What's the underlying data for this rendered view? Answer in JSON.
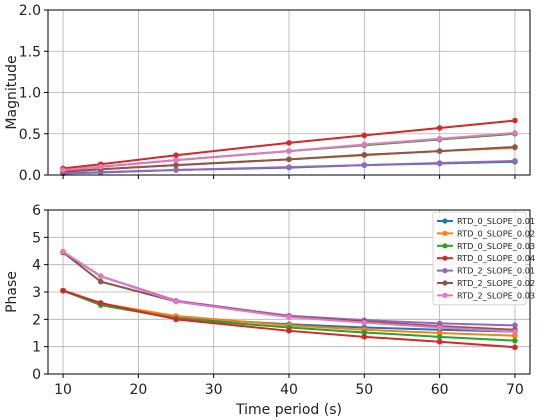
{
  "chart_data": [
    {
      "type": "line",
      "ylabel": "Magnitude",
      "xlabel": "",
      "ylim": [
        0,
        2
      ],
      "xlim": [
        8,
        72
      ],
      "yticks": [
        "0.0",
        "0.5",
        "1.0",
        "1.5",
        "2.0"
      ],
      "xticks": [
        10,
        20,
        30,
        40,
        50,
        60,
        70
      ],
      "grid": true,
      "x": [
        10,
        15,
        25,
        40,
        50,
        60,
        70
      ],
      "series": [
        {
          "name": "RTD_0_SLOPE_0.01",
          "color": "#1f77b4",
          "values": [
            0.02,
            0.03,
            0.06,
            0.09,
            0.12,
            0.14,
            0.16
          ]
        },
        {
          "name": "RTD_0_SLOPE_0.02",
          "color": "#ff7f0e",
          "values": [
            0.04,
            0.07,
            0.12,
            0.19,
            0.24,
            0.29,
            0.33
          ]
        },
        {
          "name": "RTD_0_SLOPE_0.03",
          "color": "#2ca02c",
          "values": [
            0.06,
            0.1,
            0.18,
            0.29,
            0.36,
            0.43,
            0.5
          ]
        },
        {
          "name": "RTD_0_SLOPE_0.04",
          "color": "#d62728",
          "values": [
            0.08,
            0.13,
            0.24,
            0.39,
            0.48,
            0.57,
            0.66
          ]
        },
        {
          "name": "RTD_2_SLOPE_0.01",
          "color": "#9467bd",
          "values": [
            0.02,
            0.035,
            0.06,
            0.095,
            0.12,
            0.145,
            0.17
          ]
        },
        {
          "name": "RTD_2_SLOPE_0.02",
          "color": "#8c564b",
          "values": [
            0.04,
            0.07,
            0.12,
            0.19,
            0.245,
            0.29,
            0.34
          ]
        },
        {
          "name": "RTD_2_SLOPE_0.03",
          "color": "#e377c2",
          "values": [
            0.06,
            0.1,
            0.18,
            0.29,
            0.37,
            0.44,
            0.51
          ]
        }
      ]
    },
    {
      "type": "line",
      "ylabel": "Phase",
      "xlabel": "Time period (s)",
      "ylim": [
        0,
        6
      ],
      "xlim": [
        8,
        72
      ],
      "yticks": [
        "0",
        "1",
        "2",
        "3",
        "4",
        "5",
        "6"
      ],
      "xticks": [
        10,
        20,
        30,
        40,
        50,
        60,
        70
      ],
      "grid": true,
      "legend_position": "top-right",
      "x": [
        10,
        15,
        25,
        40,
        50,
        60,
        70
      ],
      "series": [
        {
          "name": "RTD_0_SLOPE_0.01",
          "color": "#1f77b4",
          "values": [
            3.05,
            2.58,
            2.05,
            1.82,
            1.7,
            1.62,
            1.55
          ]
        },
        {
          "name": "RTD_0_SLOPE_0.02",
          "color": "#ff7f0e",
          "values": [
            3.05,
            2.58,
            2.12,
            1.78,
            1.62,
            1.5,
            1.4
          ]
        },
        {
          "name": "RTD_0_SLOPE_0.03",
          "color": "#2ca02c",
          "values": [
            3.05,
            2.52,
            2.03,
            1.7,
            1.52,
            1.36,
            1.22
          ]
        },
        {
          "name": "RTD_0_SLOPE_0.04",
          "color": "#d62728",
          "values": [
            3.05,
            2.6,
            2.0,
            1.58,
            1.36,
            1.18,
            0.98
          ]
        },
        {
          "name": "RTD_2_SLOPE_0.01",
          "color": "#9467bd",
          "values": [
            4.45,
            3.58,
            2.68,
            2.13,
            1.97,
            1.85,
            1.78
          ]
        },
        {
          "name": "RTD_2_SLOPE_0.02",
          "color": "#8c564b",
          "values": [
            4.45,
            3.38,
            2.65,
            2.1,
            1.92,
            1.75,
            1.62
          ]
        },
        {
          "name": "RTD_2_SLOPE_0.03",
          "color": "#e377c2",
          "values": [
            4.48,
            3.58,
            2.65,
            2.08,
            1.88,
            1.7,
            1.55
          ]
        }
      ]
    }
  ]
}
